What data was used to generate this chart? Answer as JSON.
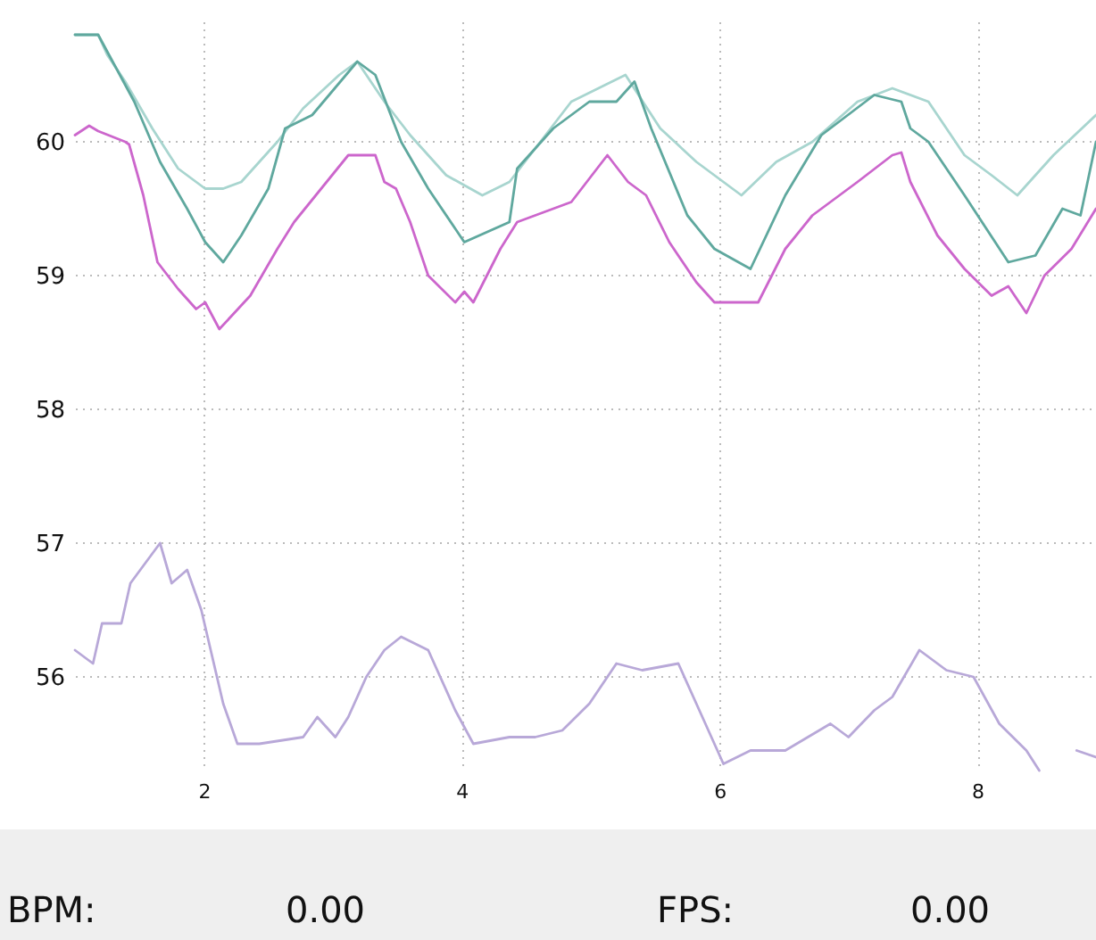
{
  "chart_data": {
    "type": "line",
    "xlim": [
      1,
      8.92
    ],
    "xticks": [
      2,
      4,
      6,
      8
    ],
    "ylim": [
      55.3,
      60.9
    ],
    "yticks": [
      56,
      57,
      58,
      59,
      60
    ],
    "grid": true,
    "line_style": "solid",
    "annotations": [
      "BPM:",
      "0.00",
      "FPS:",
      "0.00"
    ],
    "series": [
      {
        "color": "#a8d5cf",
        "x": [
          1.0,
          1.18,
          1.25,
          1.39,
          1.6,
          1.8,
          2.01,
          2.15,
          2.29,
          2.57,
          2.77,
          3.05,
          3.19,
          3.4,
          3.6,
          3.88,
          4.16,
          4.37,
          4.57,
          4.85,
          5.27,
          5.54,
          5.82,
          6.17,
          6.44,
          6.72,
          7.07,
          7.34,
          7.62,
          7.9,
          8.11,
          8.31,
          8.59,
          8.92
        ],
        "values": [
          60.8,
          60.8,
          60.65,
          60.45,
          60.1,
          59.8,
          59.65,
          59.65,
          59.7,
          60.0,
          60.25,
          60.5,
          60.6,
          60.3,
          60.05,
          59.75,
          59.6,
          59.7,
          59.95,
          60.3,
          60.5,
          60.1,
          59.85,
          59.6,
          59.85,
          60.0,
          60.3,
          60.4,
          60.3,
          59.9,
          59.75,
          59.6,
          59.9,
          60.2
        ]
      },
      {
        "color": "#5fa89e",
        "x": [
          1.0,
          1.18,
          1.32,
          1.46,
          1.66,
          1.87,
          2.01,
          2.15,
          2.29,
          2.5,
          2.63,
          2.84,
          3.19,
          3.33,
          3.53,
          3.74,
          4.02,
          4.37,
          4.43,
          4.71,
          4.99,
          5.2,
          5.34,
          5.47,
          5.75,
          5.96,
          6.24,
          6.51,
          6.79,
          7.2,
          7.41,
          7.48,
          7.62,
          7.9,
          8.24,
          8.45,
          8.66,
          8.8,
          8.92
        ],
        "values": [
          60.8,
          60.8,
          60.55,
          60.3,
          59.85,
          59.5,
          59.25,
          59.1,
          59.3,
          59.65,
          60.1,
          60.2,
          60.6,
          60.5,
          60.0,
          59.65,
          59.25,
          59.4,
          59.8,
          60.1,
          60.3,
          60.3,
          60.45,
          60.1,
          59.45,
          59.2,
          59.05,
          59.6,
          60.05,
          60.35,
          60.3,
          60.1,
          60.0,
          59.6,
          59.1,
          59.15,
          59.5,
          59.45,
          60.0
        ]
      },
      {
        "color": "#cc66cc",
        "x": [
          1.0,
          1.11,
          1.18,
          1.39,
          1.42,
          1.53,
          1.64,
          1.8,
          1.94,
          2.01,
          2.12,
          2.36,
          2.57,
          2.7,
          2.91,
          3.12,
          3.33,
          3.4,
          3.49,
          3.6,
          3.74,
          3.95,
          4.02,
          4.09,
          4.3,
          4.43,
          4.57,
          4.85,
          5.13,
          5.29,
          5.43,
          5.61,
          5.82,
          5.96,
          6.3,
          6.51,
          6.72,
          6.93,
          7.07,
          7.34,
          7.41,
          7.48,
          7.69,
          7.9,
          8.11,
          8.24,
          8.38,
          8.52,
          8.73,
          8.92
        ],
        "values": [
          60.05,
          60.12,
          60.08,
          60.0,
          59.98,
          59.6,
          59.1,
          58.9,
          58.75,
          58.8,
          58.6,
          58.85,
          59.2,
          59.4,
          59.65,
          59.9,
          59.9,
          59.7,
          59.65,
          59.4,
          59.0,
          58.8,
          58.88,
          58.8,
          59.2,
          59.4,
          59.45,
          59.55,
          59.9,
          59.7,
          59.6,
          59.25,
          58.95,
          58.8,
          58.8,
          59.2,
          59.45,
          59.6,
          59.7,
          59.9,
          59.92,
          59.7,
          59.3,
          59.05,
          58.85,
          58.92,
          58.72,
          59.0,
          59.2,
          59.5
        ]
      },
      {
        "color": "#b8a8d8",
        "x": [
          1.0,
          1.14,
          1.21,
          1.36,
          1.43,
          1.66,
          1.75,
          1.87,
          1.98,
          2.15,
          2.26,
          2.43,
          2.77,
          2.88,
          3.02,
          3.12,
          3.26,
          3.4,
          3.53,
          3.74,
          3.95,
          4.09,
          4.37,
          4.57,
          4.78,
          4.99,
          5.2,
          5.4,
          5.68,
          5.89,
          6.03,
          6.24,
          6.51,
          6.86,
          7.0,
          7.2,
          7.34,
          7.55,
          7.76,
          7.97,
          8.17,
          8.38,
          8.48,
          8.52,
          8.73,
          8.77,
          8.92
        ],
        "values": [
          56.2,
          56.1,
          56.4,
          56.4,
          56.7,
          57.0,
          56.7,
          56.8,
          56.5,
          55.8,
          55.5,
          55.5,
          55.55,
          55.7,
          55.55,
          55.7,
          56.0,
          56.2,
          56.3,
          56.2,
          55.75,
          55.5,
          55.55,
          55.55,
          55.6,
          55.8,
          56.1,
          56.05,
          56.1,
          55.65,
          55.35,
          55.45,
          55.45,
          55.65,
          55.55,
          55.75,
          55.85,
          56.2,
          56.05,
          56.0,
          55.65,
          55.45,
          55.3,
          null,
          null,
          55.45,
          55.4
        ]
      }
    ]
  }
}
